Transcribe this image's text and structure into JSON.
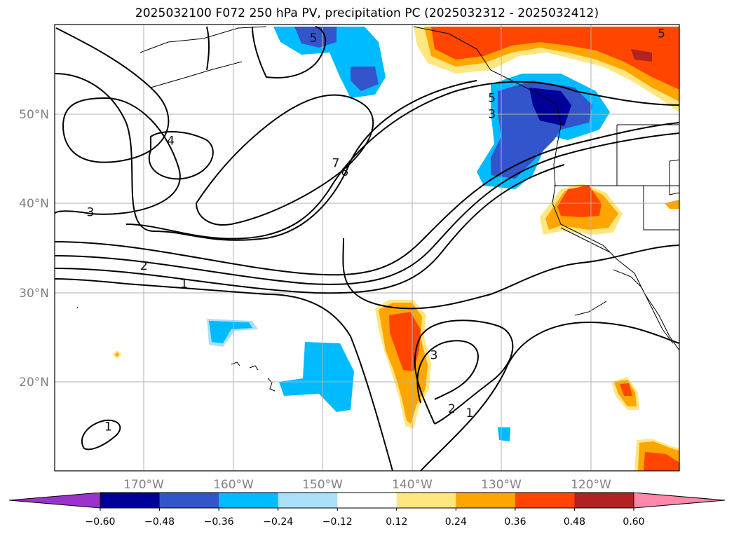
{
  "title": "2025032100 F072 250 hPa PV, precipitation PC (2025032312 - 2025032412)",
  "map": {
    "lon_range": [
      -180,
      -110
    ],
    "lat_range": [
      10,
      60
    ],
    "lat_ticks": [
      {
        "value": 50,
        "label": "50°N"
      },
      {
        "value": 40,
        "label": "40°N"
      },
      {
        "value": 30,
        "label": "30°N"
      },
      {
        "value": 20,
        "label": "20°N"
      }
    ],
    "lon_ticks": [
      {
        "value": -170,
        "label": "170°W"
      },
      {
        "value": -160,
        "label": "160°W"
      },
      {
        "value": -150,
        "label": "150°W"
      },
      {
        "value": -140,
        "label": "140°W"
      },
      {
        "value": -130,
        "label": "130°W"
      },
      {
        "value": -120,
        "label": "120°W"
      }
    ],
    "grid_lines": true
  },
  "contour_labels": [
    {
      "text": "4",
      "lon": -167,
      "lat": 47
    },
    {
      "text": "3",
      "lon": -176,
      "lat": 39
    },
    {
      "text": "7",
      "lon": -148.5,
      "lat": 44.5
    },
    {
      "text": "6",
      "lon": -147.5,
      "lat": 43.5
    },
    {
      "text": "3",
      "lon": -131,
      "lat": 50
    },
    {
      "text": "5",
      "lon": -131,
      "lat": 51.8
    },
    {
      "text": "2",
      "lon": -170,
      "lat": 33
    },
    {
      "text": "1",
      "lon": -165.5,
      "lat": 31
    },
    {
      "text": "3",
      "lon": -137.5,
      "lat": 23
    },
    {
      "text": "2",
      "lon": -135.5,
      "lat": 17
    },
    {
      "text": "1",
      "lon": -133.5,
      "lat": 16.5
    },
    {
      "text": "1",
      "lon": -174,
      "lat": 15
    },
    {
      "text": "5",
      "lon": -151,
      "lat": 58.5
    },
    {
      "text": "5",
      "lon": -112,
      "lat": 59
    }
  ],
  "colorbar": {
    "levels": [
      "-0.60",
      "-0.48",
      "-0.36",
      "-0.24",
      "-0.12",
      "0.12",
      "0.24",
      "0.36",
      "0.48",
      "0.60"
    ],
    "colors": [
      "#9933cc",
      "#000099",
      "#3355cc",
      "#00bbff",
      "#aadff9",
      "#ffffff",
      "#ffe680",
      "#ffa500",
      "#ff4500",
      "#b22222",
      "#ff88aa"
    ]
  }
}
